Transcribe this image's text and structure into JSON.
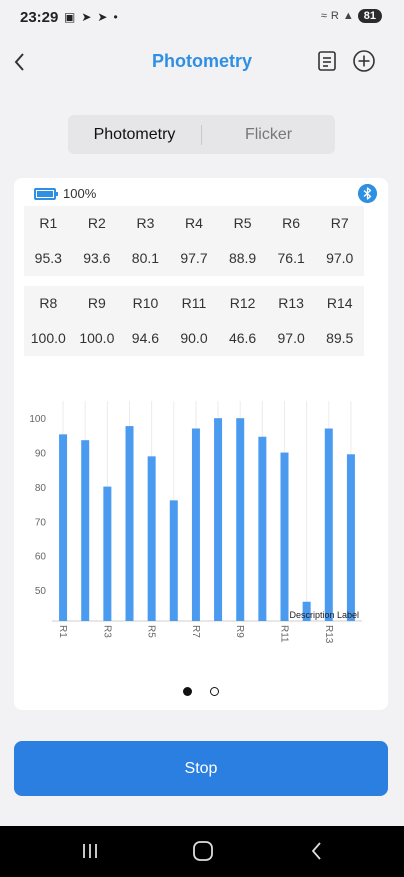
{
  "status_bar": {
    "time": "23:29",
    "left_icons": [
      "screenshot-icon",
      "telegram-icon",
      "telegram-icon",
      "dot-icon"
    ],
    "battery_level": "81",
    "signal_text": "R"
  },
  "header": {
    "title": "Photometry",
    "back_icon": "chevron-left-icon",
    "doc_icon": "document-icon",
    "add_icon": "plus-circle-icon"
  },
  "tabs": [
    {
      "label": "Photometry",
      "active": true
    },
    {
      "label": "Flicker",
      "active": false
    }
  ],
  "device": {
    "battery_text": "100%",
    "bluetooth_icon": "bluetooth-icon"
  },
  "r_table_1": {
    "headers": [
      "R1",
      "R2",
      "R3",
      "R4",
      "R5",
      "R6",
      "R7"
    ],
    "values": [
      "95.3",
      "93.6",
      "80.1",
      "97.7",
      "88.9",
      "76.1",
      "97.0"
    ]
  },
  "r_table_2": {
    "headers": [
      "R8",
      "R9",
      "R10",
      "R11",
      "R12",
      "R13",
      "R14"
    ],
    "values": [
      "100.0",
      "100.0",
      "94.6",
      "90.0",
      "46.6",
      "97.0",
      "89.5"
    ]
  },
  "chart_data": {
    "type": "bar",
    "categories": [
      "R1",
      "R2",
      "R3",
      "R4",
      "R5",
      "R6",
      "R7",
      "R8",
      "R9",
      "R10",
      "R11",
      "R12",
      "R13",
      "R14"
    ],
    "tick_labels": [
      "R1",
      "",
      "R3",
      "",
      "R5",
      "",
      "R7",
      "",
      "R9",
      "",
      "R11",
      "",
      "R13",
      ""
    ],
    "values": [
      95.3,
      93.6,
      80.1,
      97.7,
      88.9,
      76.1,
      97.0,
      100.0,
      100.0,
      94.6,
      90.0,
      46.6,
      97.0,
      89.5
    ],
    "yticks": [
      50,
      60,
      70,
      80,
      90,
      100
    ],
    "ylim": [
      41,
      105
    ],
    "color": "#4a9af0",
    "description_label": "Description Label",
    "grid": true
  },
  "pager": {
    "count": 2,
    "active": 0
  },
  "actions": {
    "stop_label": "Stop"
  },
  "colors": {
    "accent": "#2f8fe3",
    "button": "#2a7fe0"
  }
}
